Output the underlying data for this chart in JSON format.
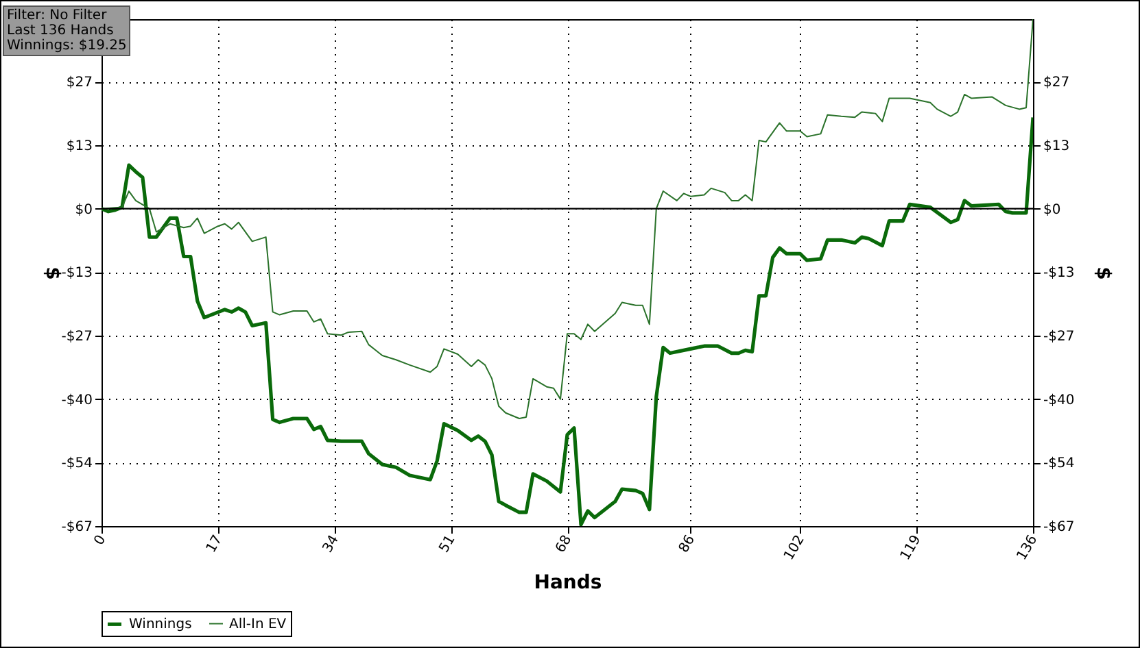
{
  "chart_data": {
    "type": "line",
    "xlabel": "Hands",
    "ylabel": "$",
    "y2label": "$",
    "annotations": [
      "Filter: No Filter",
      "Last  136 Hands",
      "Winnings: $19.25"
    ],
    "xlim": [
      0,
      136
    ],
    "xticks": [
      0,
      17,
      34,
      51,
      68,
      86,
      102,
      119,
      136
    ],
    "ylim": [
      -67,
      40
    ],
    "yticks": [
      {
        "value": -67,
        "label": "-$67"
      },
      {
        "value": -53.6,
        "label": "-$54"
      },
      {
        "value": -40.2,
        "label": "-$40"
      },
      {
        "value": -26.8,
        "label": "-$27"
      },
      {
        "value": -13.4,
        "label": "-$13"
      },
      {
        "value": 0,
        "label": "$0"
      },
      {
        "value": 13.4,
        "label": "$13"
      },
      {
        "value": 26.8,
        "label": "$27"
      }
    ],
    "y2lim": [
      -67,
      40
    ],
    "y2ticks": [
      {
        "value": -67,
        "label": "-$67"
      },
      {
        "value": -53.6,
        "label": "-$54"
      },
      {
        "value": -40.2,
        "label": "-$40"
      },
      {
        "value": -26.8,
        "label": "-$27"
      },
      {
        "value": -13.4,
        "label": "-$13"
      },
      {
        "value": 0,
        "label": "$0"
      },
      {
        "value": 13.4,
        "label": "$13"
      },
      {
        "value": 26.8,
        "label": "$27"
      }
    ],
    "grid": true,
    "legend": "bottom left",
    "ref_lines": [
      {
        "axis": "y",
        "value": 0,
        "color": "#000000"
      }
    ],
    "series": [
      {
        "name": "Winnings",
        "color": "#0a6a0a",
        "x": [
          0,
          1,
          2,
          3,
          4,
          5,
          6,
          7,
          8,
          10,
          11,
          12,
          13,
          14,
          15,
          18,
          19,
          20,
          21,
          22,
          24,
          25,
          26,
          28,
          30,
          31,
          32,
          33,
          35,
          38,
          39,
          41,
          43,
          45,
          48,
          49,
          50,
          52,
          54,
          55,
          56,
          57,
          58,
          59,
          61,
          62,
          63,
          65,
          67,
          68,
          69,
          70,
          71,
          72,
          75,
          76,
          78,
          79,
          80,
          81,
          82,
          83,
          85,
          88,
          90,
          92,
          93,
          94,
          95,
          96,
          97,
          98,
          99,
          100,
          102,
          103,
          105,
          106,
          108,
          110,
          111,
          112,
          114,
          115,
          117,
          118,
          121,
          124,
          125,
          126,
          127,
          131,
          132,
          133,
          135,
          136
        ],
        "values": [
          0,
          -0.6,
          -0.3,
          0.3,
          9.2,
          7.8,
          6.6,
          -6.0,
          -6.0,
          -2.0,
          -2.0,
          -10.1,
          -10.1,
          -19.5,
          -23.0,
          -21.3,
          -21.8,
          -21.0,
          -21.8,
          -24.7,
          -24.1,
          -44.5,
          -45.1,
          -44.3,
          -44.3,
          -46.6,
          -46.0,
          -48.9,
          -49.1,
          -49.1,
          -51.7,
          -54.0,
          -54.6,
          -56.3,
          -57.2,
          -53.2,
          -45.4,
          -46.8,
          -48.9,
          -48.0,
          -49.1,
          -52.0,
          -61.8,
          -62.6,
          -64.1,
          -64.1,
          -56.0,
          -57.5,
          -59.8,
          -47.7,
          -46.3,
          -66.7,
          -63.8,
          -65.2,
          -61.8,
          -59.2,
          -59.5,
          -60.1,
          -63.5,
          -39.7,
          -29.3,
          -30.5,
          -29.9,
          -29.0,
          -29.0,
          -30.5,
          -30.5,
          -29.9,
          -30.2,
          -18.4,
          -18.4,
          -10.3,
          -8.3,
          -9.5,
          -9.5,
          -10.9,
          -10.6,
          -6.6,
          -6.6,
          -7.2,
          -6.0,
          -6.3,
          -7.8,
          -2.6,
          -2.6,
          0.9,
          0.3,
          -2.9,
          -2.3,
          1.7,
          0.6,
          0.9,
          -0.6,
          -0.9,
          -0.9,
          19.25
        ]
      },
      {
        "name": "All-In EV",
        "color": "#2a722a",
        "x": [
          0,
          3,
          4,
          5,
          7,
          8,
          10,
          12,
          13,
          14,
          15,
          17,
          18,
          19,
          20,
          22,
          24,
          25,
          26,
          28,
          30,
          31,
          32,
          33,
          35,
          36,
          38,
          39,
          41,
          43,
          45,
          48,
          49,
          50,
          52,
          54,
          55,
          56,
          57,
          58,
          59,
          61,
          62,
          63,
          65,
          66,
          67,
          68,
          69,
          70,
          71,
          72,
          75,
          76,
          78,
          79,
          80,
          81,
          82,
          84,
          85,
          86,
          88,
          89,
          91,
          92,
          93,
          94,
          95,
          96,
          97,
          99,
          100,
          102,
          103,
          105,
          106,
          108,
          110,
          111,
          113,
          114,
          115,
          117,
          118,
          121,
          122,
          124,
          125,
          126,
          127,
          130,
          132,
          134,
          135,
          136
        ],
        "values": [
          0,
          0.3,
          3.7,
          1.7,
          0,
          -4.9,
          -3.2,
          -4.0,
          -3.7,
          -2.0,
          -5.2,
          -3.7,
          -3.2,
          -4.3,
          -2.9,
          -6.9,
          -6.0,
          -21.8,
          -22.4,
          -21.6,
          -21.6,
          -23.9,
          -23.3,
          -26.4,
          -26.7,
          -26.1,
          -25.9,
          -28.7,
          -31.0,
          -31.9,
          -33.0,
          -34.5,
          -33.3,
          -29.6,
          -30.7,
          -33.3,
          -31.9,
          -33.0,
          -35.9,
          -41.7,
          -43.1,
          -44.3,
          -44.0,
          -35.9,
          -37.6,
          -37.9,
          -40.2,
          -26.4,
          -26.4,
          -27.6,
          -24.4,
          -25.9,
          -22.1,
          -19.8,
          -20.4,
          -20.4,
          -24.4,
          0,
          3.7,
          1.7,
          3.2,
          2.6,
          2.9,
          4.3,
          3.4,
          1.7,
          1.7,
          2.9,
          1.7,
          14.4,
          14.1,
          18.1,
          16.4,
          16.4,
          15.2,
          15.8,
          19.8,
          19.5,
          19.3,
          20.4,
          20.1,
          18.4,
          23.3,
          23.3,
          23.3,
          22.4,
          21.0,
          19.5,
          20.4,
          24.1,
          23.3,
          23.6,
          21.8,
          21.0,
          21.3,
          40
        ]
      }
    ]
  }
}
